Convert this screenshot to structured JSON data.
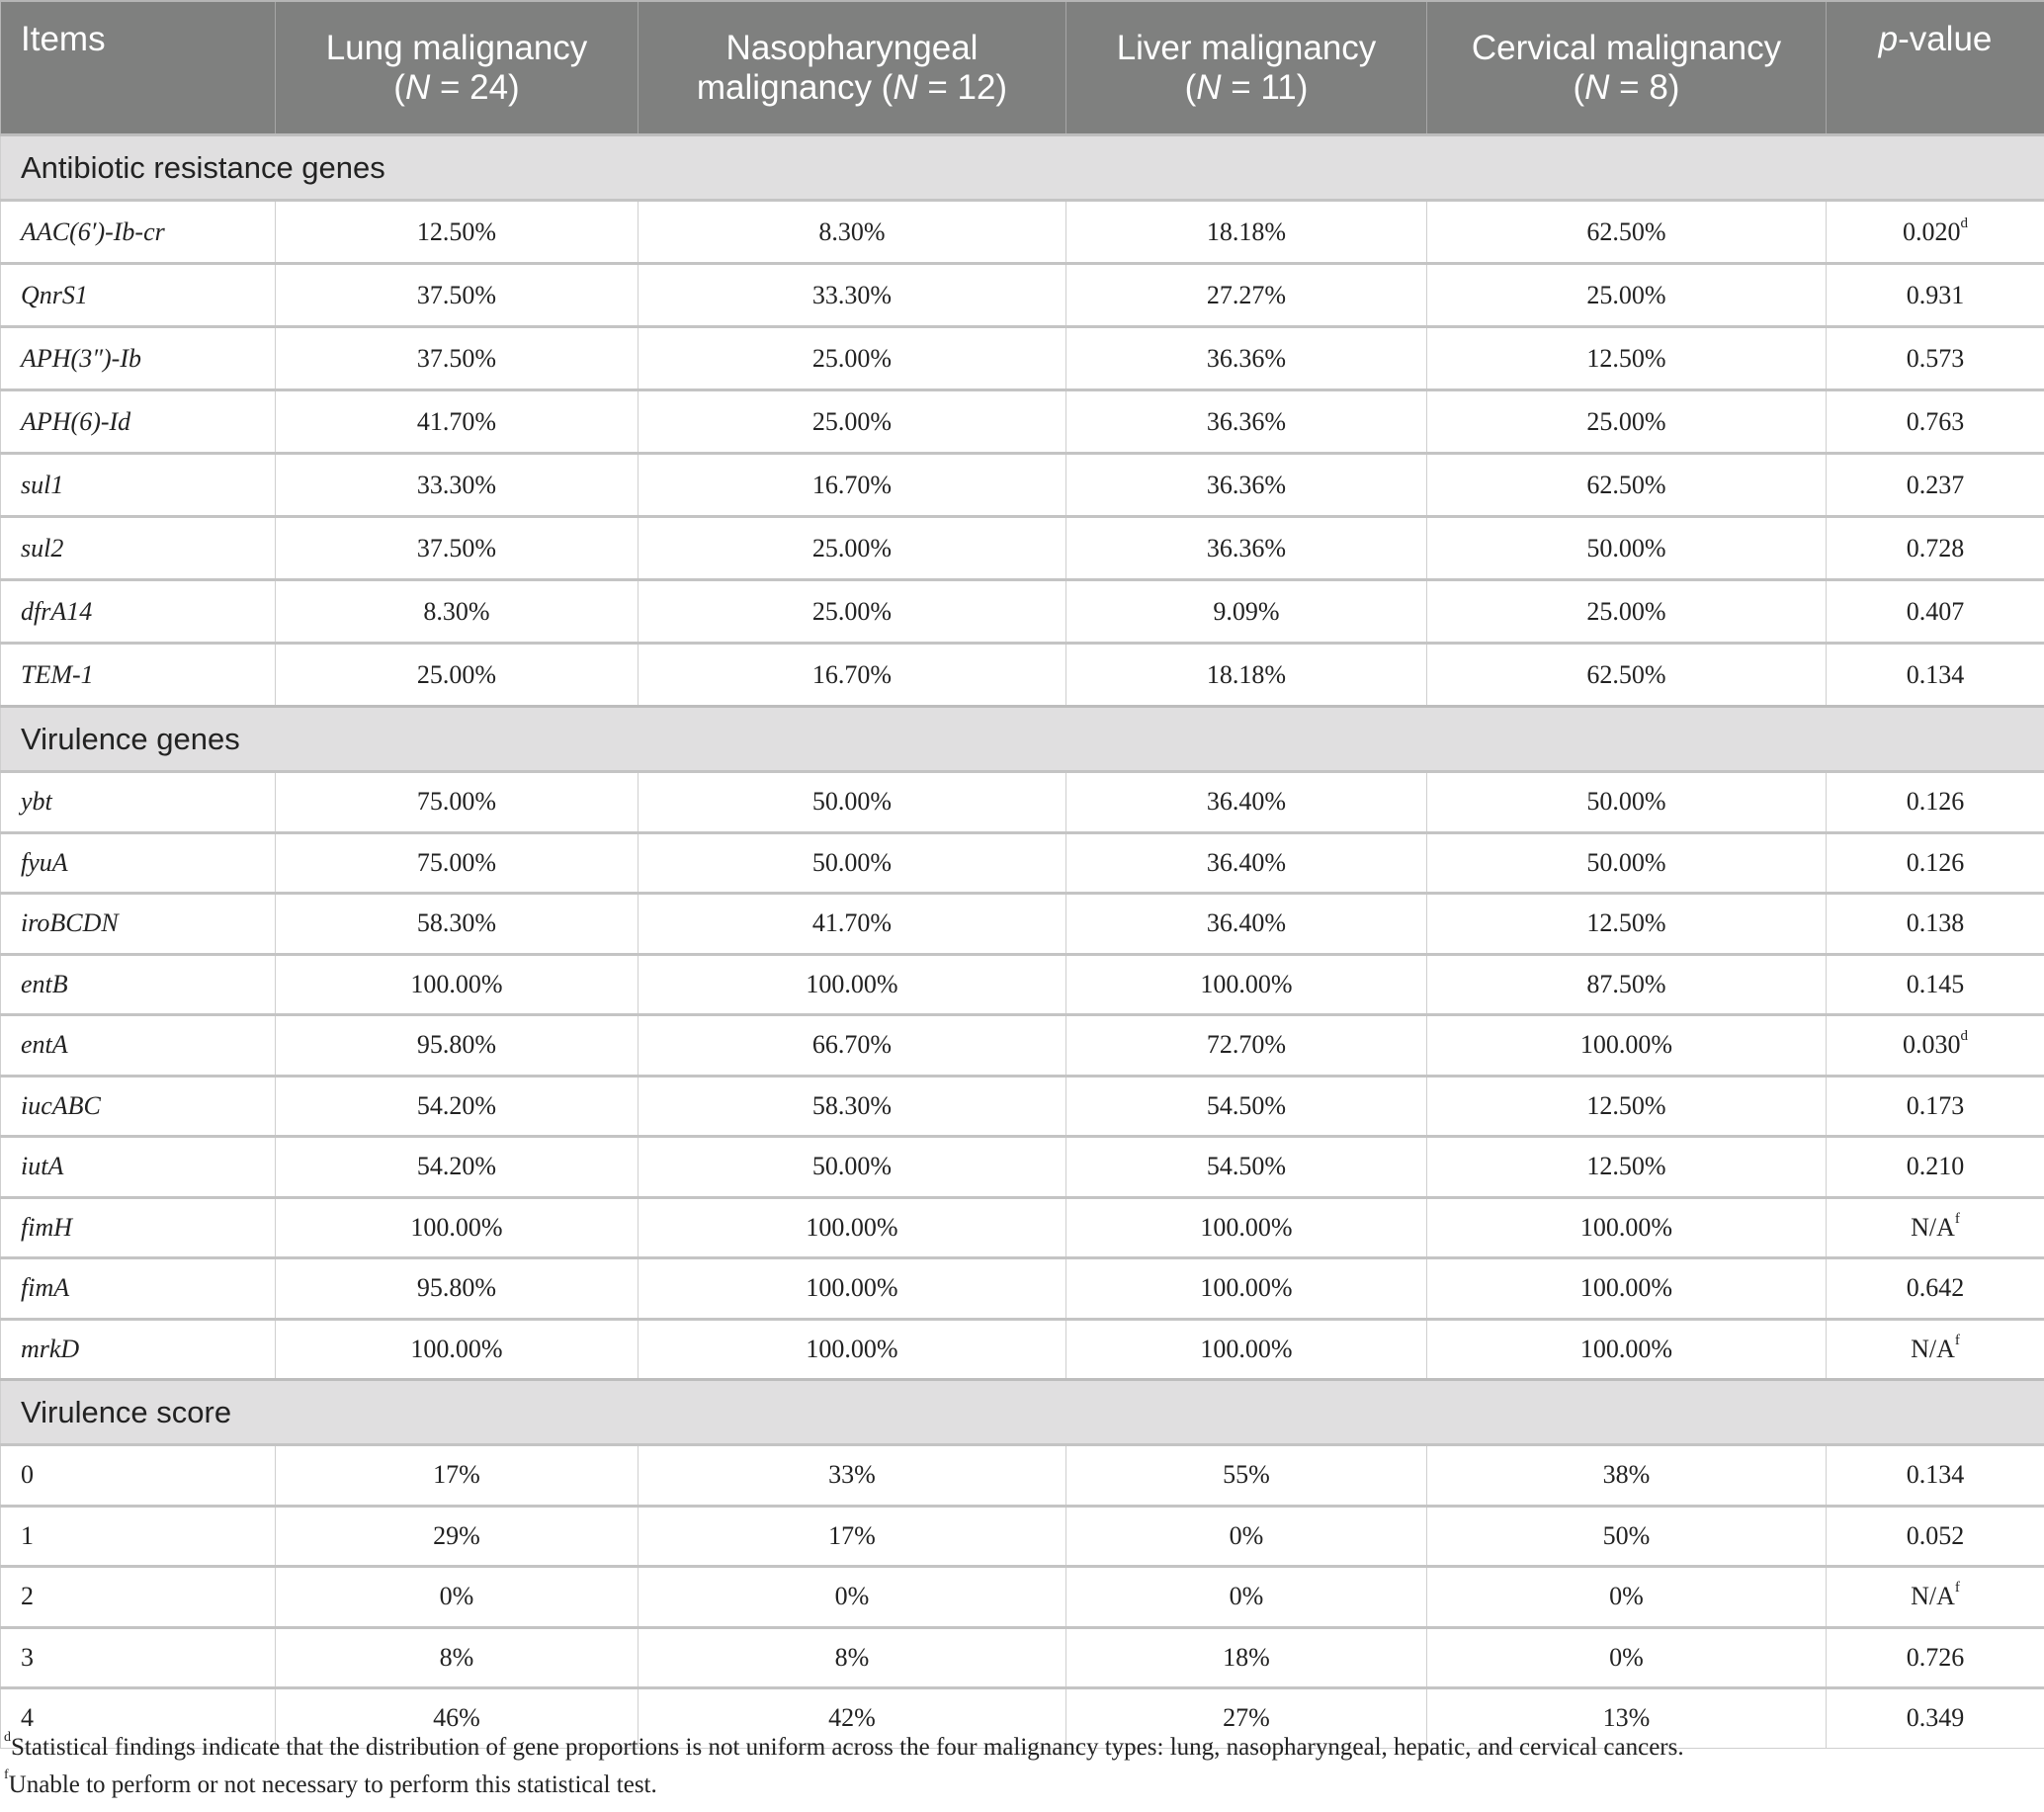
{
  "header": {
    "columns": [
      {
        "text": "Items"
      },
      {
        "text": "Lung malignancy",
        "n_label": "N",
        "n_rest": " = 24)"
      },
      {
        "text": "Nasopharyngeal",
        "text2": "malignancy (",
        "n_label": "N",
        "n_rest": " = 12)"
      },
      {
        "text": "Liver malignancy",
        "n_label": "N",
        "n_rest": " = 11)"
      },
      {
        "text": "Cervical malignancy",
        "n_label": "N",
        "n_rest": " = 8)"
      },
      {
        "p": "p",
        "rest": "-value"
      }
    ]
  },
  "sections": [
    {
      "title": "Antibiotic resistance genes",
      "italic": true,
      "rows": [
        {
          "item": "AAC(6′)-Ib-cr",
          "values": [
            "12.50%",
            "8.30%",
            "18.18%",
            "62.50%"
          ],
          "p": "0.020",
          "sup": "d"
        },
        {
          "item": "QnrS1",
          "values": [
            "37.50%",
            "33.30%",
            "27.27%",
            "25.00%"
          ],
          "p": "0.931"
        },
        {
          "item": "APH(3″)-Ib",
          "values": [
            "37.50%",
            "25.00%",
            "36.36%",
            "12.50%"
          ],
          "p": "0.573"
        },
        {
          "item": "APH(6)-Id",
          "values": [
            "41.70%",
            "25.00%",
            "36.36%",
            "25.00%"
          ],
          "p": "0.763"
        },
        {
          "item": "sul1",
          "values": [
            "33.30%",
            "16.70%",
            "36.36%",
            "62.50%"
          ],
          "p": "0.237"
        },
        {
          "item": "sul2",
          "values": [
            "37.50%",
            "25.00%",
            "36.36%",
            "50.00%"
          ],
          "p": "0.728"
        },
        {
          "item": "dfrA14",
          "values": [
            "8.30%",
            "25.00%",
            "9.09%",
            "25.00%"
          ],
          "p": "0.407"
        },
        {
          "item": "TEM-1",
          "values": [
            "25.00%",
            "16.70%",
            "18.18%",
            "62.50%"
          ],
          "p": "0.134"
        }
      ]
    },
    {
      "title": "Virulence genes",
      "italic": true,
      "rows": [
        {
          "item": "ybt",
          "values": [
            "75.00%",
            "50.00%",
            "36.40%",
            "50.00%"
          ],
          "p": "0.126"
        },
        {
          "item": "fyuA",
          "values": [
            "75.00%",
            "50.00%",
            "36.40%",
            "50.00%"
          ],
          "p": "0.126"
        },
        {
          "item": "iroBCDN",
          "values": [
            "58.30%",
            "41.70%",
            "36.40%",
            "12.50%"
          ],
          "p": "0.138"
        },
        {
          "item": "entB",
          "values": [
            "100.00%",
            "100.00%",
            "100.00%",
            "87.50%"
          ],
          "p": "0.145"
        },
        {
          "item": "entA",
          "values": [
            "95.80%",
            "66.70%",
            "72.70%",
            "100.00%"
          ],
          "p": "0.030",
          "sup": "d"
        },
        {
          "item": "iucABC",
          "values": [
            "54.20%",
            "58.30%",
            "54.50%",
            "12.50%"
          ],
          "p": "0.173"
        },
        {
          "item": "iutA",
          "values": [
            "54.20%",
            "50.00%",
            "54.50%",
            "12.50%"
          ],
          "p": "0.210"
        },
        {
          "item": "fimH",
          "values": [
            "100.00%",
            "100.00%",
            "100.00%",
            "100.00%"
          ],
          "p": "N/A",
          "sup": "f"
        },
        {
          "item": "fimA",
          "values": [
            "95.80%",
            "100.00%",
            "100.00%",
            "100.00%"
          ],
          "p": "0.642"
        },
        {
          "item": "mrkD",
          "values": [
            "100.00%",
            "100.00%",
            "100.00%",
            "100.00%"
          ],
          "p": "N/A",
          "sup": "f"
        }
      ]
    },
    {
      "title": "Virulence score",
      "italic": false,
      "rows": [
        {
          "item": "0",
          "values": [
            "17%",
            "33%",
            "55%",
            "38%"
          ],
          "p": "0.134"
        },
        {
          "item": "1",
          "values": [
            "29%",
            "17%",
            "0%",
            "50%"
          ],
          "p": "0.052"
        },
        {
          "item": "2",
          "values": [
            "0%",
            "0%",
            "0%",
            "0%"
          ],
          "p": "N/A",
          "sup": "f"
        },
        {
          "item": "3",
          "values": [
            "8%",
            "8%",
            "18%",
            "0%"
          ],
          "p": "0.726"
        },
        {
          "item": "4",
          "values": [
            "46%",
            "42%",
            "27%",
            "13%"
          ],
          "p": "0.349"
        }
      ]
    }
  ],
  "footnotes": [
    {
      "mark": "d",
      "text": "Statistical findings indicate that the distribution of gene proportions is not uniform across the four malignancy types: lung, nasopharyngeal, hepatic, and cervical cancers."
    },
    {
      "mark": "f",
      "text": "Unable to perform or not necessary to perform this statistical test."
    }
  ],
  "colors": {
    "header_bg": "#7f807f",
    "section_bg": "#e0dfe0"
  }
}
